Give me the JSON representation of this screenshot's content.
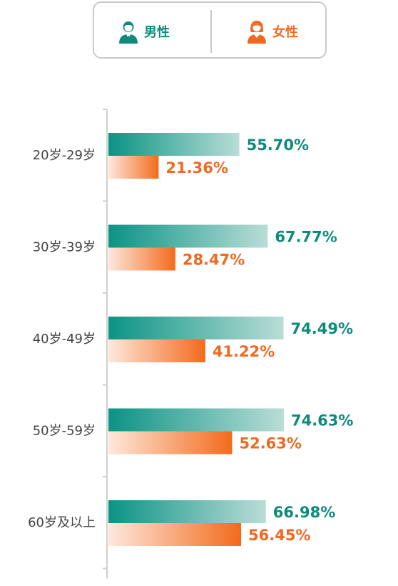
{
  "legend": {
    "male_label": "男性",
    "female_label": "女性"
  },
  "colors": {
    "male": "#0b9384",
    "male_light": "#b9ddd7",
    "female": "#f36a1c",
    "female_light": "#fde8dc",
    "male_text": "#0e8a7c",
    "female_text": "#f0691f",
    "axis": "#cfcfcf",
    "category_text": "#444444"
  },
  "chart_data": {
    "type": "bar",
    "orientation": "horizontal",
    "categories": [
      "20岁-29岁",
      "30岁-39岁",
      "40岁-49岁",
      "50岁-59岁",
      "60岁及以上"
    ],
    "series": [
      {
        "name": "男性",
        "values": [
          55.7,
          67.77,
          74.49,
          74.63,
          66.98
        ],
        "labels": [
          "55.70%",
          "67.77%",
          "74.49%",
          "74.63%",
          "66.98%"
        ]
      },
      {
        "name": "女性",
        "values": [
          21.36,
          28.47,
          41.22,
          52.63,
          56.45
        ],
        "labels": [
          "21.36%",
          "28.47%",
          "41.22%",
          "52.63%",
          "56.45%"
        ]
      }
    ],
    "title": "",
    "xlabel": "",
    "ylabel": "",
    "xlim": [
      0,
      100
    ],
    "grid": false,
    "legend_position": "top-center"
  }
}
